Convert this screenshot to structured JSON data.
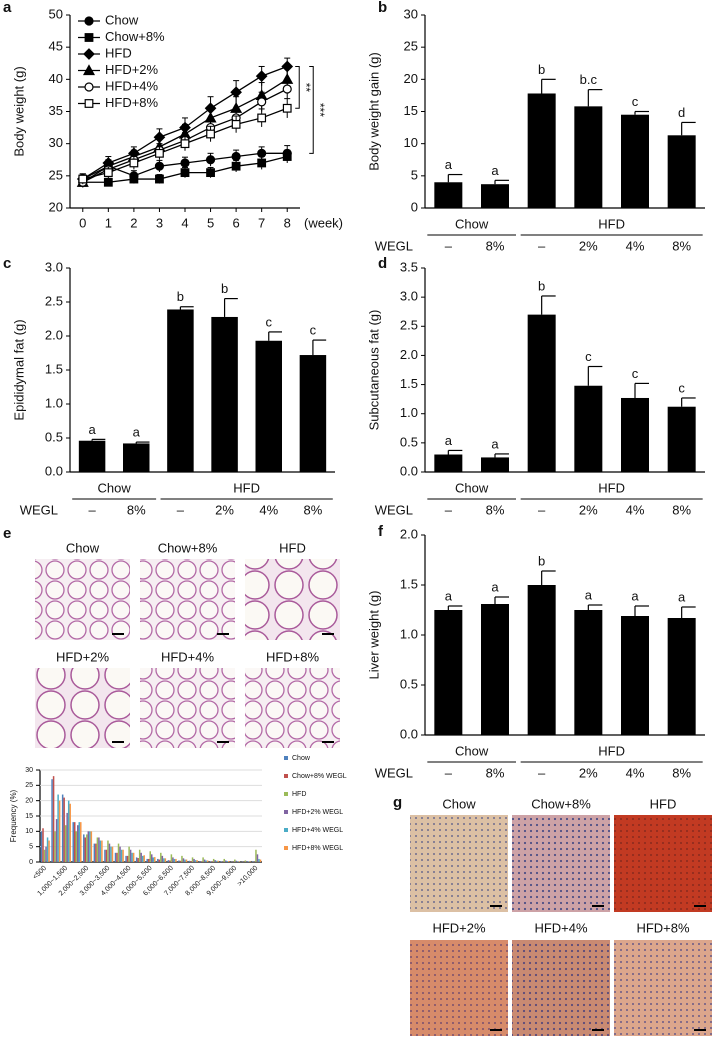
{
  "chart_data": [
    {
      "type": "line",
      "label": "a",
      "ylabel": "Body weight (g)",
      "xlabel": "(week)",
      "x": [
        0,
        1,
        2,
        3,
        4,
        5,
        6,
        7,
        8
      ],
      "xlim": [
        -0.5,
        8.5
      ],
      "xticks": [
        0,
        1,
        2,
        3,
        4,
        5,
        6,
        7,
        8
      ],
      "ylim": [
        20,
        50
      ],
      "yticks": [
        20,
        25,
        30,
        35,
        40,
        45,
        50
      ],
      "annotations": [
        "**",
        "***"
      ],
      "series": [
        {
          "name": "Chow",
          "marker": "circle",
          "color": "#000000",
          "values": [
            24.5,
            26.5,
            25,
            26.5,
            27,
            27.5,
            28,
            28.5,
            28.5
          ],
          "errors": [
            0.8,
            0.8,
            0.8,
            0.9,
            0.9,
            1,
            1,
            1,
            1.2
          ]
        },
        {
          "name": "Chow+8%",
          "marker": "square",
          "color": "#000000",
          "values": [
            24,
            24,
            24.5,
            24.5,
            25.5,
            25.5,
            26.5,
            27,
            28
          ],
          "errors": [
            0.6,
            0.6,
            0.7,
            0.7,
            0.8,
            0.8,
            0.9,
            1,
            1
          ]
        },
        {
          "name": "HFD",
          "marker": "diamond",
          "color": "#000000",
          "values": [
            24.5,
            27,
            28.5,
            31,
            32.5,
            35.5,
            38,
            40.5,
            42
          ],
          "errors": [
            0.8,
            1,
            1,
            1.3,
            1.5,
            1.8,
            1.8,
            1.5,
            1.3
          ]
        },
        {
          "name": "HFD+2%",
          "marker": "triangle",
          "color": "#000000",
          "values": [
            24,
            26.5,
            28,
            29.5,
            31.5,
            34,
            35.5,
            37.5,
            40
          ],
          "errors": [
            0.8,
            1,
            1,
            1.2,
            1.5,
            1.6,
            1.8,
            2,
            2
          ]
        },
        {
          "name": "HFD+4%",
          "marker": "circle-open",
          "color": "#000000",
          "values": [
            24,
            26,
            27.5,
            29,
            30.5,
            32.5,
            34,
            36.5,
            38.5
          ],
          "errors": [
            0.8,
            0.9,
            1,
            1,
            1.2,
            1.3,
            1.5,
            1.5,
            1.5
          ]
        },
        {
          "name": "HFD+8%",
          "marker": "square-open",
          "color": "#000000",
          "values": [
            24.5,
            25.5,
            27,
            28.5,
            30,
            31.5,
            33,
            34,
            35.5
          ],
          "errors": [
            0.8,
            0.9,
            1,
            1,
            1.1,
            1.2,
            1.3,
            1.4,
            1.5
          ]
        }
      ]
    },
    {
      "type": "bar",
      "label": "b",
      "ylabel": "Body weight gain (g)",
      "color": "#000000",
      "ylim": [
        0,
        30
      ],
      "yticks": [
        0,
        5,
        10,
        15,
        20,
        25,
        30
      ],
      "values": [
        4,
        3.7,
        17.8,
        15.8,
        14.5,
        11.3
      ],
      "errors": [
        1.2,
        0.6,
        2.2,
        2.6,
        0.5,
        2
      ],
      "letters": [
        "a",
        "a",
        "b",
        "b.c",
        "c",
        "d"
      ],
      "row_label": "WEGL",
      "groups": [
        {
          "label": "Chow",
          "categories": [
            "–",
            "8%"
          ]
        },
        {
          "label": "HFD",
          "categories": [
            "–",
            "2%",
            "4%",
            "8%"
          ]
        }
      ]
    },
    {
      "type": "bar",
      "label": "c",
      "ylabel": "Epididymal fat (g)",
      "color": "#000000",
      "ylim": [
        0,
        3
      ],
      "yticks": [
        {
          "value": 0,
          "label": "0.0"
        },
        0.5,
        {
          "value": 1,
          "label": "1.0"
        },
        1.5,
        {
          "value": 2,
          "label": "2.0"
        },
        2.5,
        {
          "value": 3,
          "label": "3.0"
        }
      ],
      "values": [
        0.46,
        0.42,
        2.39,
        2.28,
        1.93,
        1.72
      ],
      "errors": [
        0.02,
        0.02,
        0.04,
        0.27,
        0.13,
        0.22
      ],
      "letters": [
        "a",
        "a",
        "b",
        "b",
        "c",
        "c"
      ],
      "row_label": "WEGL",
      "groups": [
        {
          "label": "Chow",
          "categories": [
            "–",
            "8%"
          ]
        },
        {
          "label": "HFD",
          "categories": [
            "–",
            "2%",
            "4%",
            "8%"
          ]
        }
      ]
    },
    {
      "type": "bar",
      "label": "d",
      "ylabel": "Subcutaneous fat (g)",
      "color": "#000000",
      "ylim": [
        0,
        3.5
      ],
      "yticks": [
        {
          "value": 0,
          "label": "0.0"
        },
        0.5,
        {
          "value": 1,
          "label": "1.0"
        },
        1.5,
        {
          "value": 2,
          "label": "2.0"
        },
        2.5,
        {
          "value": 3,
          "label": "3.0"
        },
        3.5
      ],
      "values": [
        0.3,
        0.25,
        2.7,
        1.48,
        1.27,
        1.12
      ],
      "errors": [
        0.07,
        0.06,
        0.32,
        0.33,
        0.25,
        0.15
      ],
      "letters": [
        "a",
        "a",
        "b",
        "c",
        "c",
        "c"
      ],
      "row_label": "WEGL",
      "groups": [
        {
          "label": "Chow",
          "categories": [
            "–",
            "8%"
          ]
        },
        {
          "label": "HFD",
          "categories": [
            "–",
            "2%",
            "4%",
            "8%"
          ]
        }
      ]
    },
    {
      "type": "bar",
      "ylabel": "Frequency (%)",
      "grid": true,
      "ylim": [
        0,
        30
      ],
      "yticks": [
        0,
        5,
        10,
        15,
        20,
        25,
        30
      ],
      "categories": [
        "<500",
        null,
        "1,000~1,500",
        null,
        "2,000~2,500",
        null,
        "3,000~3,500",
        null,
        "4,000~4,500",
        null,
        "5,000~5,500",
        null,
        "6,000~6,500",
        null,
        "7,000~7,500",
        null,
        "8,000~8,500",
        null,
        "9,000~9,500",
        null,
        ">10,000"
      ],
      "series": [
        {
          "name": "Chow",
          "color": "#4f81bd",
          "values": [
            10,
            27,
            22,
            13,
            9,
            6,
            4,
            3,
            2,
            1.5,
            1,
            1,
            0.6,
            0.5,
            0.4,
            0.3,
            0.2,
            0.2,
            0.1,
            0.1,
            0.2
          ]
        },
        {
          "name": "Chow+8% WEGL",
          "color": "#c0504d",
          "values": [
            11,
            28,
            21,
            13,
            8,
            6,
            4,
            3,
            2,
            1.3,
            1,
            0.8,
            0.5,
            0.4,
            0.3,
            0.2,
            0.2,
            0.1,
            0.1,
            0.1,
            0.1
          ]
        },
        {
          "name": "HFD",
          "color": "#9bbb59",
          "values": [
            4,
            10,
            12,
            10,
            9,
            8,
            7,
            6,
            5,
            4,
            3.5,
            3,
            2.5,
            2,
            1.5,
            1.5,
            1,
            1,
            0.8,
            0.5,
            4
          ]
        },
        {
          "name": "HFD+2% WEGL",
          "color": "#8064a2",
          "values": [
            5,
            14,
            16,
            12,
            10,
            8,
            6,
            5,
            4,
            3,
            2.5,
            2,
            1.5,
            1.2,
            1,
            0.8,
            0.6,
            0.5,
            0.4,
            0.3,
            2.5
          ]
        },
        {
          "name": "HFD+4% WEGL",
          "color": "#4bacc6",
          "values": [
            8,
            22,
            20,
            13,
            10,
            7,
            5,
            4,
            3,
            2,
            1.5,
            1.2,
            1,
            0.8,
            0.6,
            0.5,
            0.4,
            0.3,
            0.2,
            0.2,
            1
          ]
        },
        {
          "name": "HFD+8% WEGL",
          "color": "#f79646",
          "values": [
            7,
            20,
            19,
            13,
            10,
            7,
            5,
            4,
            3,
            2.2,
            1.6,
            1.2,
            1,
            0.8,
            0.6,
            0.5,
            0.4,
            0.3,
            0.2,
            0.2,
            0.8
          ]
        }
      ]
    },
    {
      "type": "bar",
      "label": "f",
      "ylabel": "Liver weight (g)",
      "color": "#000000",
      "ylim": [
        0,
        2
      ],
      "yticks": [
        {
          "value": 0,
          "label": "0.0"
        },
        0.5,
        {
          "value": 1,
          "label": "1.0"
        },
        1.5,
        {
          "value": 2,
          "label": "2.0"
        }
      ],
      "values": [
        1.25,
        1.31,
        1.5,
        1.25,
        1.19,
        1.17
      ],
      "errors": [
        0.04,
        0.07,
        0.14,
        0.05,
        0.1,
        0.11
      ],
      "letters": [
        "a",
        "a",
        "b",
        "a",
        "a",
        "a"
      ],
      "row_label": "WEGL",
      "groups": [
        {
          "label": "Chow",
          "categories": [
            "–",
            "8%"
          ]
        },
        {
          "label": "HFD",
          "categories": [
            "–",
            "2%",
            "4%",
            "8%"
          ]
        }
      ]
    }
  ],
  "micrographs": [
    {
      "label": "e",
      "panels": [
        "Chow",
        "Chow+8%",
        "HFD",
        "HFD+2%",
        "HFD+4%",
        "HFD+8%"
      ]
    },
    {
      "label": "g",
      "panels": [
        "Chow",
        "Chow+8%",
        "HFD",
        "HFD+2%",
        "HFD+4%",
        "HFD+8%"
      ]
    }
  ]
}
